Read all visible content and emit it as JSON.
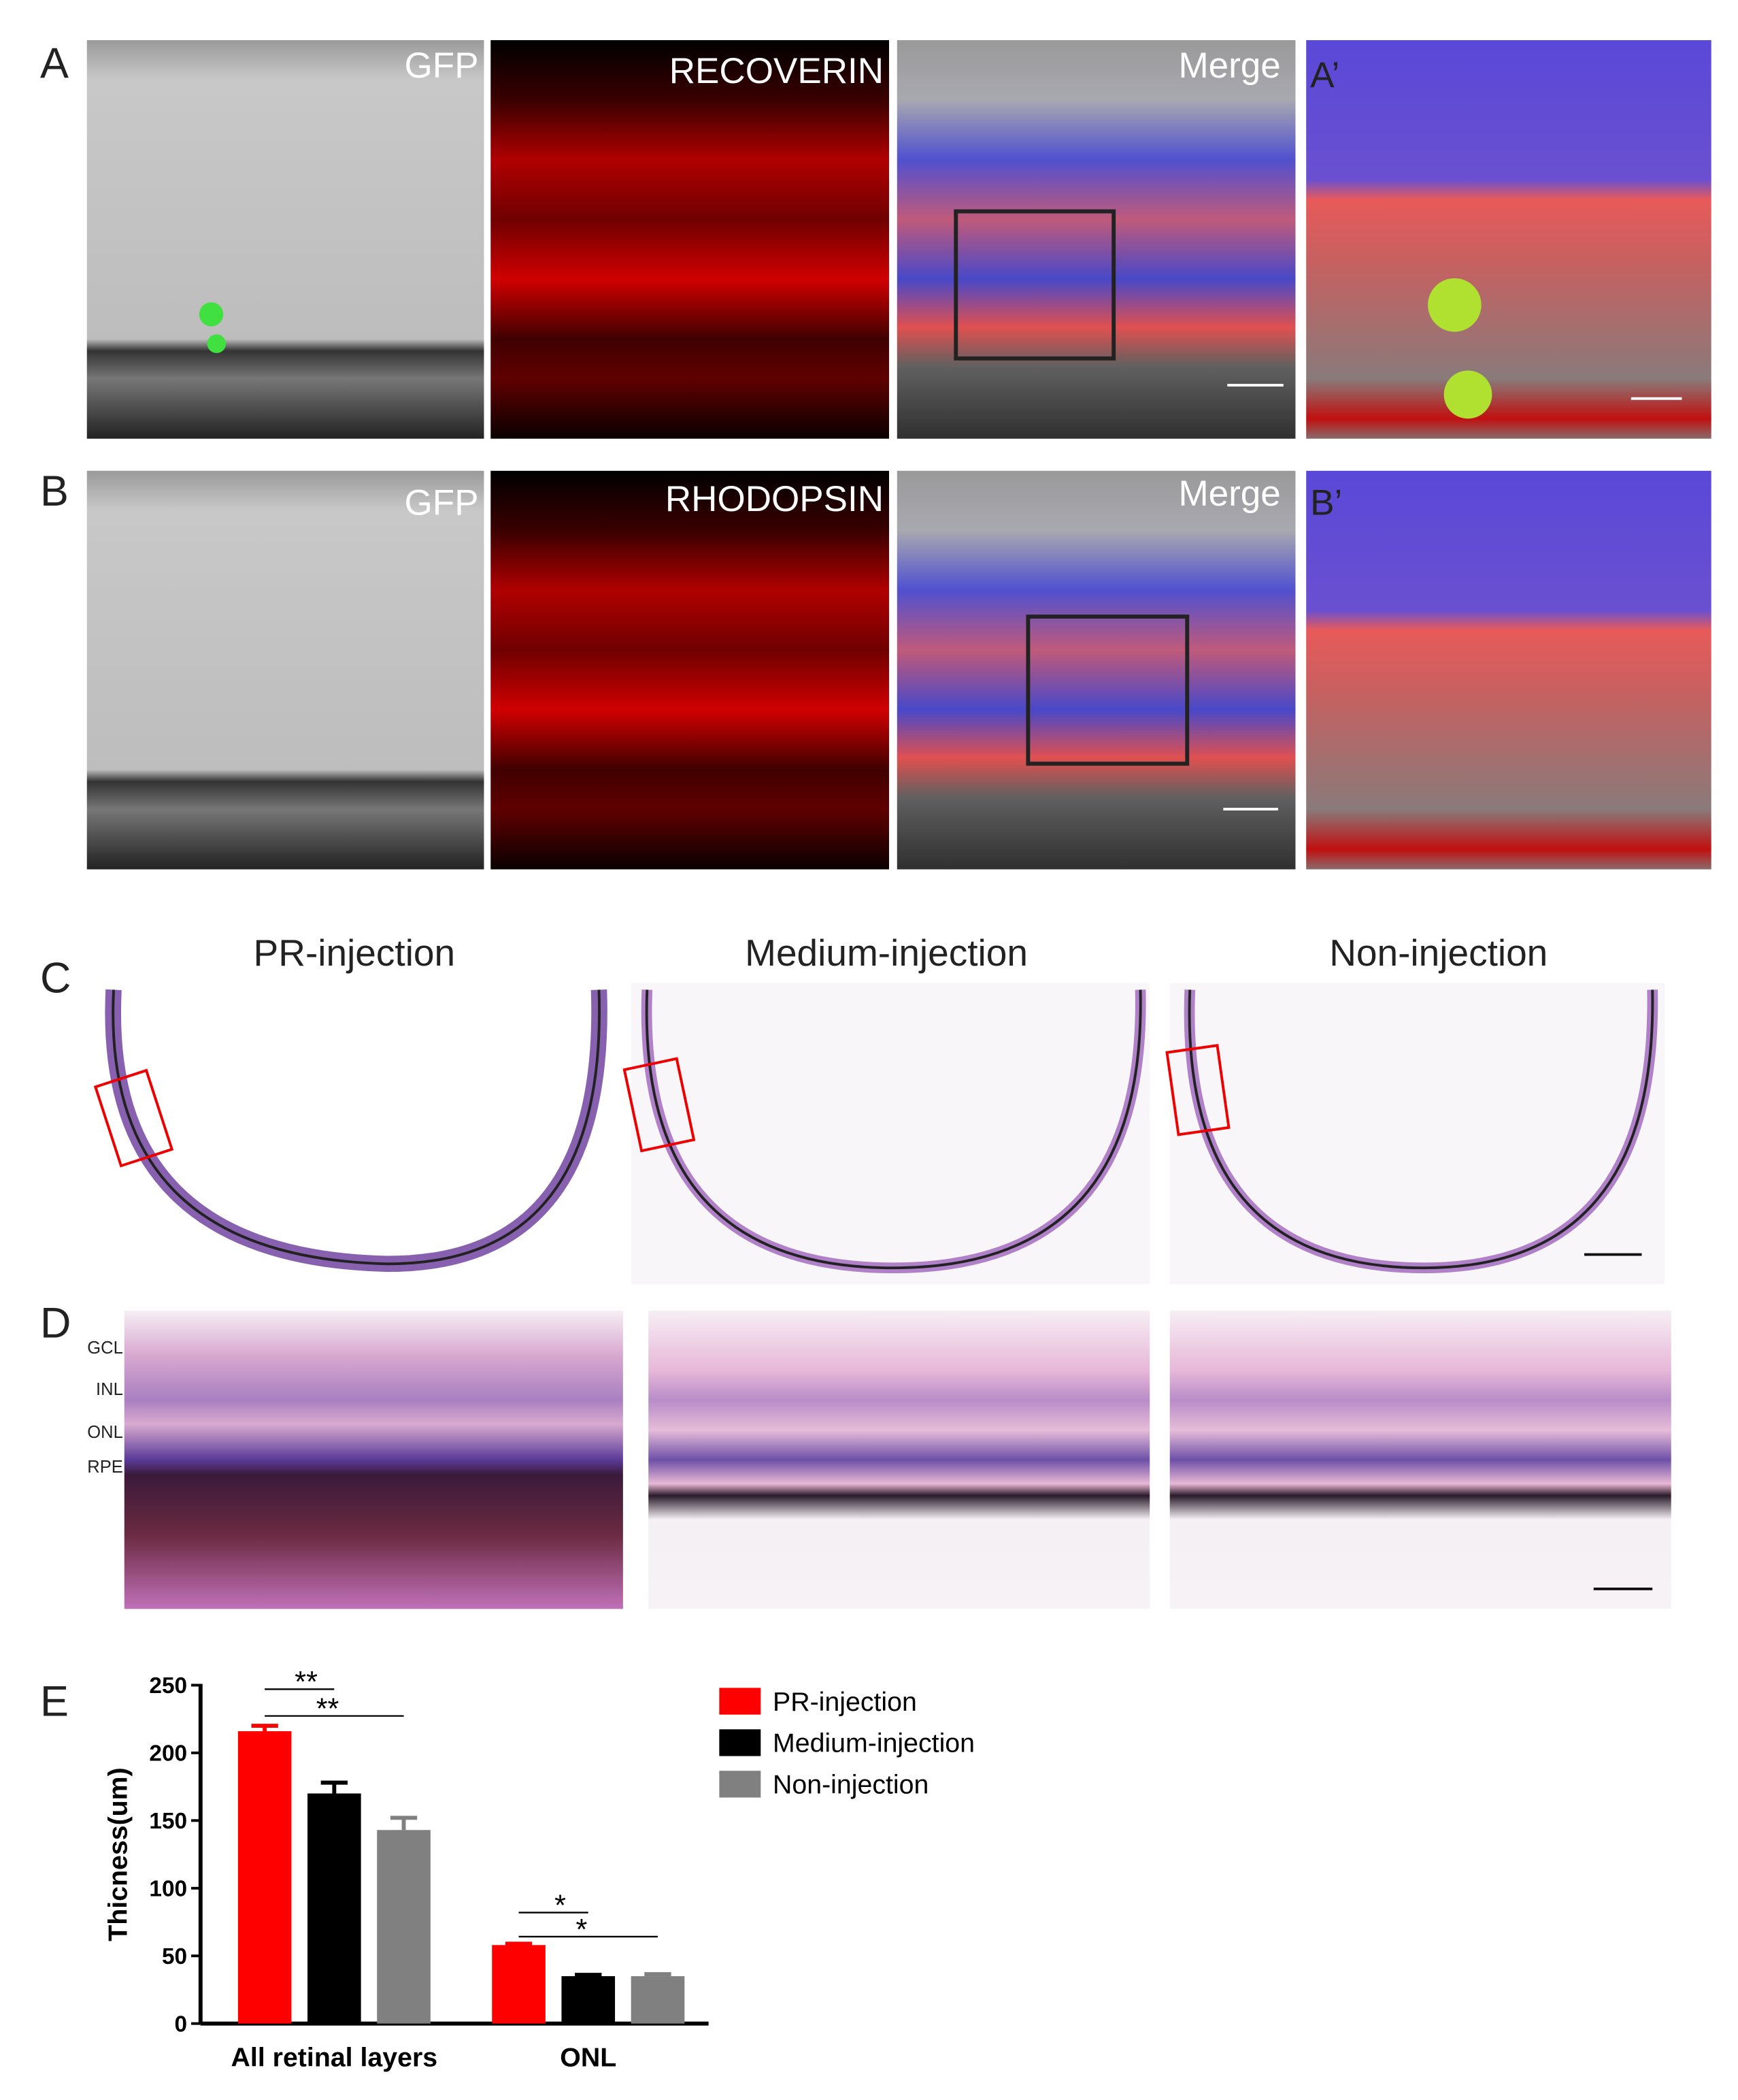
{
  "panels": {
    "a": {
      "label": "A",
      "images": [
        "GFP",
        "RECOVERIN",
        "Merge"
      ],
      "zoom": "A’"
    },
    "b": {
      "label": "B",
      "images": [
        "GFP",
        "RHODOPSIN",
        "Merge"
      ],
      "zoom": "B’"
    },
    "c": {
      "label": "C",
      "titles": [
        "PR-injection",
        "Medium-injection",
        "Non-injection"
      ]
    },
    "d": {
      "label": "D",
      "layers": [
        "GCL",
        "INL",
        "ONL",
        "RPE"
      ]
    },
    "e": {
      "label": "E"
    }
  },
  "chart_data": {
    "type": "bar",
    "ylabel": "Thicness(um)",
    "categories": [
      "All retinal layers",
      "ONL"
    ],
    "series": [
      {
        "name": "PR-injection",
        "color": "#ff0000",
        "values": [
          216,
          58
        ],
        "errors": [
          4,
          1
        ]
      },
      {
        "name": "Medium-injection",
        "color": "#000000",
        "values": [
          170,
          35
        ],
        "errors": [
          8,
          1
        ]
      },
      {
        "name": "Non-injection",
        "color": "#808080",
        "values": [
          143,
          35
        ],
        "errors": [
          9,
          1.5
        ]
      }
    ],
    "ylim": [
      0,
      250
    ],
    "yticks": [
      0,
      50,
      100,
      150,
      200,
      250
    ],
    "annotations": [
      "**",
      "**",
      "*",
      "*"
    ],
    "legend": "upper right"
  }
}
